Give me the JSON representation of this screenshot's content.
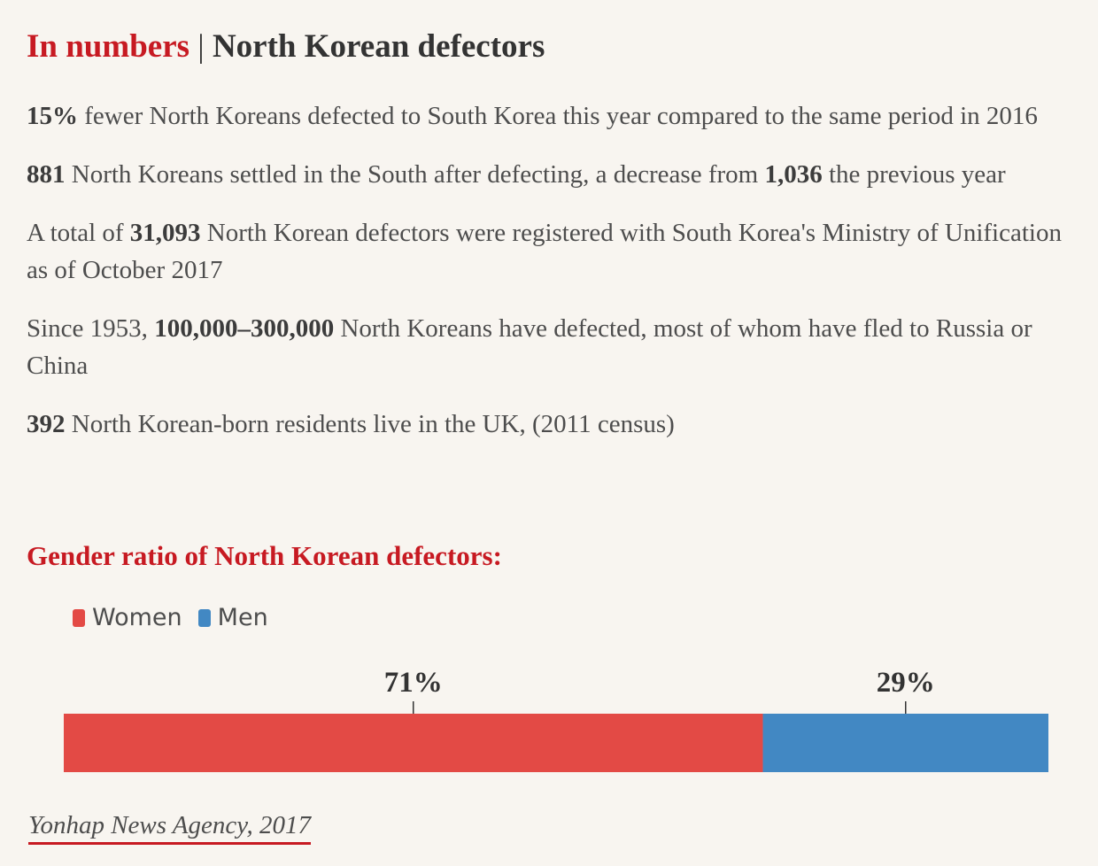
{
  "title": {
    "accent": "In numbers",
    "separator": "|",
    "main": "North Korean defectors"
  },
  "facts": [
    {
      "pre": "",
      "b1": "15%",
      "mid": " fewer North Koreans defected to South Korea this year compared to the same period in 2016",
      "b2": "",
      "post": ""
    },
    {
      "pre": "",
      "b1": "881",
      "mid": " North Koreans settled in the South after defecting, a decrease from ",
      "b2": "1,036",
      "post": " the previous year"
    },
    {
      "pre": "A total of ",
      "b1": "31,093",
      "mid": " North Korean defectors were registered with South Korea's Ministry of Unification as of October 2017",
      "b2": "",
      "post": ""
    },
    {
      "pre": "Since 1953, ",
      "b1": "100,000–300,000",
      "mid": " North Koreans have defected, most of whom have fled to Russia or China",
      "b2": "",
      "post": ""
    },
    {
      "pre": "",
      "b1": "392",
      "mid": " North Korean-born residents live in the UK, (2011 census)",
      "b2": "",
      "post": ""
    }
  ],
  "chart_data": {
    "type": "bar",
    "orientation": "horizontal-stacked",
    "title": "Gender ratio of North Korean defectors:",
    "categories": [
      "Women",
      "Men"
    ],
    "values": [
      71,
      29
    ],
    "labels": [
      "71%",
      "29%"
    ],
    "unit": "%",
    "colors": [
      "#e34a45",
      "#4288c3"
    ],
    "legend": "top-left",
    "xlim": [
      0,
      100
    ]
  },
  "source": {
    "text": "Yonhap News Agency, 2017"
  }
}
